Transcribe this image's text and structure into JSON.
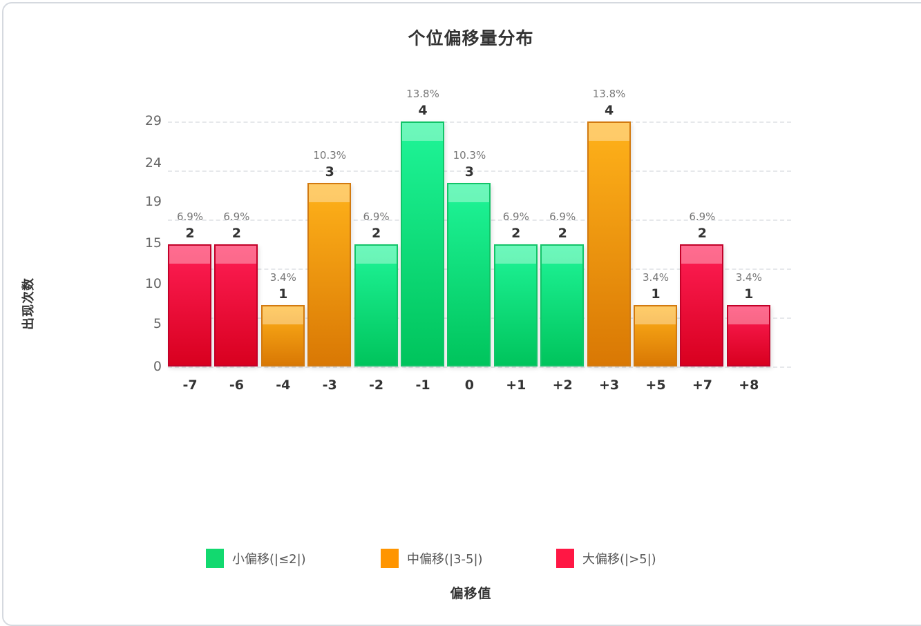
{
  "chart_data": {
    "type": "bar",
    "title": "个位偏移量分布",
    "xlabel": "偏移值",
    "ylabel": "出现次数",
    "categories": [
      "-7",
      "-6",
      "-4",
      "-3",
      "-2",
      "-1",
      "0",
      "+1",
      "+2",
      "+3",
      "+5",
      "+7",
      "+8"
    ],
    "values": [
      2,
      2,
      1,
      3,
      2,
      4,
      3,
      2,
      2,
      4,
      1,
      2,
      1
    ],
    "percentages": [
      "6.9%",
      "6.9%",
      "3.4%",
      "10.3%",
      "6.9%",
      "13.8%",
      "10.3%",
      "6.9%",
      "6.9%",
      "13.8%",
      "3.4%",
      "6.9%",
      "3.4%"
    ],
    "groups": [
      "large",
      "large",
      "medium",
      "medium",
      "small",
      "small",
      "small",
      "small",
      "small",
      "medium",
      "medium",
      "large",
      "large"
    ],
    "y_tick_labels": [
      "0",
      "5",
      "10",
      "15",
      "19",
      "24",
      "29"
    ],
    "ylim": [
      0,
      4
    ],
    "grid": true,
    "legend_position": "bottom",
    "legend": [
      {
        "key": "small",
        "label": "小偏移(|≤2|)",
        "color": "#12d96f"
      },
      {
        "key": "medium",
        "label": "中偏移(|3-5|)",
        "color": "#ff9500"
      },
      {
        "key": "large",
        "label": "大偏移(|>5|)",
        "color": "#ff1744"
      }
    ]
  }
}
